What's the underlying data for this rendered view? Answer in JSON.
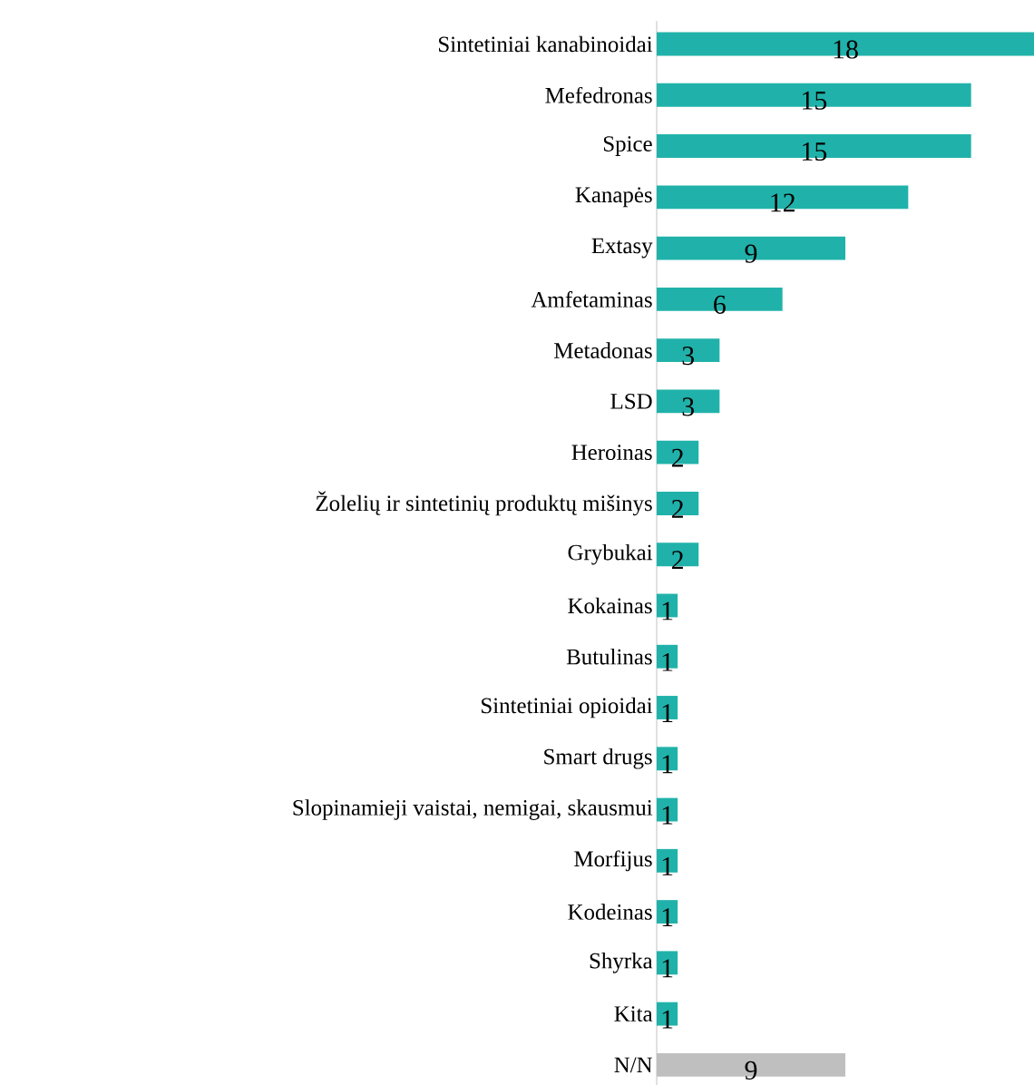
{
  "chart_data": {
    "type": "bar",
    "orientation": "horizontal",
    "data_labels": true,
    "categories": [
      "Sintetiniai kanabinoidai",
      "Mefedronas",
      "Spice",
      "Kanapės",
      "Extasy",
      "Amfetaminas",
      "Metadonas",
      "LSD",
      "Heroinas",
      "Žolelių ir sintetinių produktų mišinys",
      "Grybukai",
      "Kokainas",
      "Butulinas",
      "Sintetiniai opioidai",
      "Smart drugs",
      "Slopinamieji vaistai, nemigai, skausmui",
      "Morfijus",
      "Kodeinas",
      "Shyrka",
      "Kita",
      "N/N"
    ],
    "values": [
      18,
      15,
      15,
      12,
      9,
      6,
      3,
      3,
      2,
      2,
      2,
      1,
      1,
      1,
      1,
      1,
      1,
      1,
      1,
      1,
      9
    ],
    "colors": [
      "#20b2aa",
      "#20b2aa",
      "#20b2aa",
      "#20b2aa",
      "#20b2aa",
      "#20b2aa",
      "#20b2aa",
      "#20b2aa",
      "#20b2aa",
      "#20b2aa",
      "#20b2aa",
      "#20b2aa",
      "#20b2aa",
      "#20b2aa",
      "#20b2aa",
      "#20b2aa",
      "#20b2aa",
      "#20b2aa",
      "#20b2aa",
      "#20b2aa",
      "#bfbfbf"
    ]
  }
}
